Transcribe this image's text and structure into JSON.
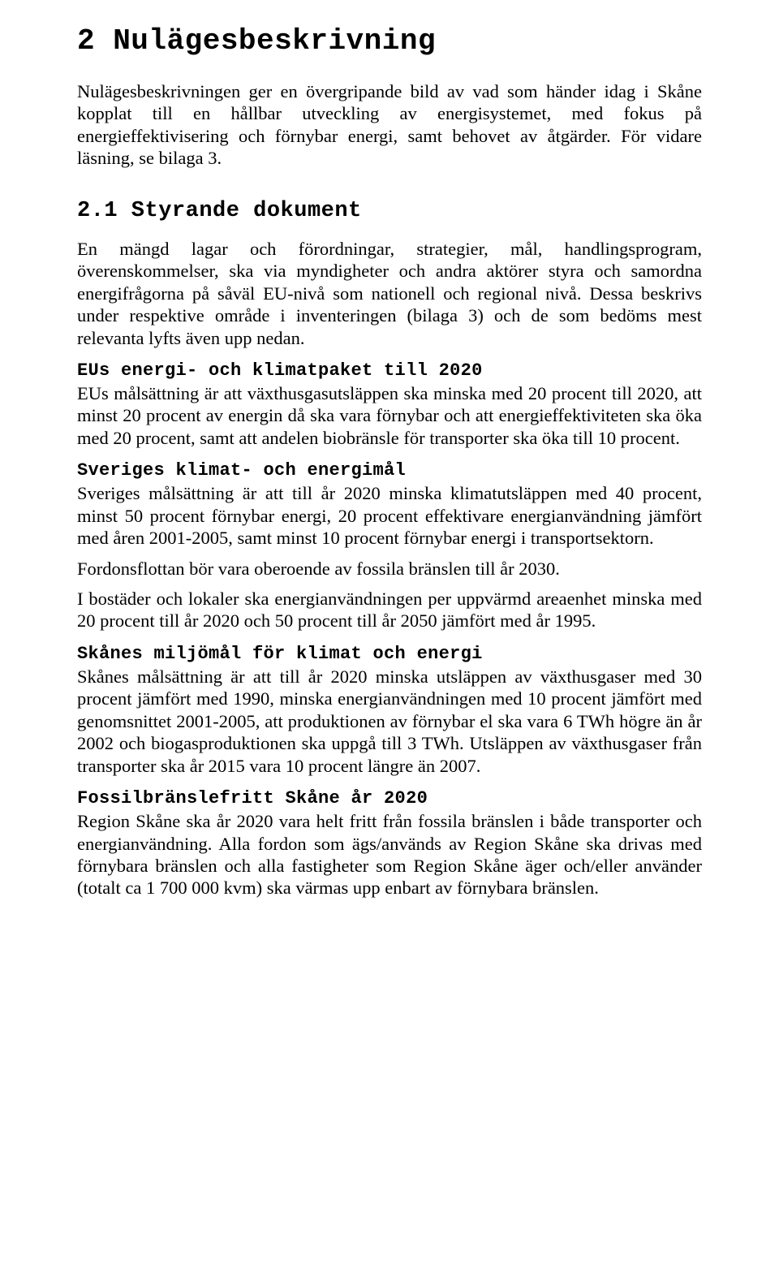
{
  "title": "2 Nulägesbeskrivning",
  "intro": "Nulägesbeskrivningen ger en övergripande bild av vad som händer idag i Skåne kopplat till en hållbar utveckling av energisystemet, med fokus på energieffektivisering och förnybar energi, samt behovet av åtgärder. För vidare läsning, se bilaga 3.",
  "section21": {
    "heading": "2.1 Styrande dokument",
    "p1": "En mängd lagar och förordningar, strategier, mål, handlingsprogram, överenskommelser, ska via myndigheter och andra aktörer styra och samordna energifrågorna på såväl EU-nivå som nationell och regional nivå. Dessa beskrivs under respektive område i inventeringen (bilaga 3) och de som bedöms mest relevanta lyfts även upp nedan.",
    "eu": {
      "heading": "EUs energi- och klimatpaket till 2020",
      "text": "EUs målsättning är att växthusgasutsläppen ska minska med 20 procent till 2020, att minst 20 procent av energin då ska vara förnybar och att energieffektiviteten ska öka med 20 procent, samt att andelen biobränsle för transporter ska öka till 10 procent."
    },
    "sverige": {
      "heading": "Sveriges klimat- och energimål",
      "p1": "Sveriges målsättning är att till år 2020 minska klimatutsläppen med 40 procent, minst 50 procent förnybar energi, 20 procent effektivare energianvändning jämfört med åren 2001-2005, samt minst 10 procent förnybar energi i transportsektorn.",
      "p2": "Fordonsflottan bör vara oberoende av fossila bränslen till år 2030.",
      "p3": "I bostäder och lokaler ska energianvändningen per uppvärmd areaenhet minska med 20 procent till år 2020 och 50 procent till år 2050 jämfört med år 1995."
    },
    "skane": {
      "heading": "Skånes miljömål för klimat och energi",
      "text": "Skånes målsättning är att till år 2020 minska utsläppen av växthusgaser med 30 procent jämfört med 1990, minska energianvändningen med 10 procent jämfört med genomsnittet 2001-2005, att produktionen av förnybar el ska vara 6 TWh högre än år 2002 och biogasproduktionen ska uppgå till 3 TWh. Utsläppen av växthusgaser från transporter ska år 2015 vara 10 procent längre än 2007."
    },
    "fossil": {
      "heading": "Fossilbränslefritt Skåne år 2020",
      "text": "Region Skåne ska år 2020 vara helt fritt från fossila bränslen i både transporter och energianvändning. Alla fordon som ägs/används av Region Skåne ska drivas med förnybara bränslen och alla fastigheter som Region Skåne äger och/eller använder (totalt ca 1 700 000 kvm) ska värmas upp enbart av förnybara bränslen."
    }
  }
}
